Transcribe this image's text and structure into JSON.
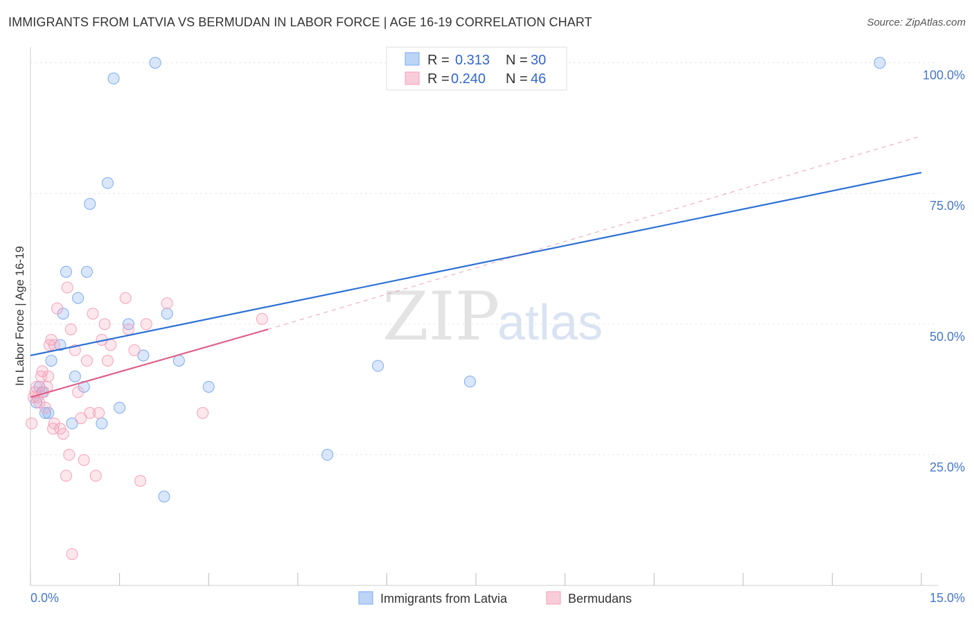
{
  "chart_data": {
    "type": "scatter",
    "title": "IMMIGRANTS FROM LATVIA VS BERMUDAN IN LABOR FORCE | AGE 16-19 CORRELATION CHART",
    "source": "Source: ZipAtlas.com",
    "xlabel": "",
    "ylabel": "In Labor Force | Age 16-19",
    "xlim": [
      0,
      15
    ],
    "ylim": [
      0,
      103
    ],
    "x_tick_labels": {
      "min": "0.0%",
      "max": "15.0%"
    },
    "y_ticks": [
      {
        "value": 25,
        "label": "25.0%"
      },
      {
        "value": 50,
        "label": "50.0%"
      },
      {
        "value": 75,
        "label": "75.0%"
      },
      {
        "value": 100,
        "label": "100.0%"
      }
    ],
    "watermark": {
      "zip": "ZIP",
      "atlas": "atlas"
    },
    "legend": [
      {
        "r_label": "R =",
        "r_value": "0.313",
        "n_label": "N =",
        "n_value": "30"
      },
      {
        "r_label": "R =",
        "r_value": "0.240",
        "n_label": "N =",
        "n_value": "46"
      }
    ],
    "series": [
      {
        "name": "Immigrants from Latvia",
        "color": "#7aaaf0",
        "line_color": "#2b6fd6",
        "trend": {
          "x": [
            0,
            15
          ],
          "y": [
            44,
            79
          ]
        },
        "points": [
          [
            0.1,
            35
          ],
          [
            0.15,
            38
          ],
          [
            0.2,
            37
          ],
          [
            0.25,
            33
          ],
          [
            0.3,
            33
          ],
          [
            0.35,
            43
          ],
          [
            0.5,
            46
          ],
          [
            0.55,
            52
          ],
          [
            0.6,
            60
          ],
          [
            0.7,
            31
          ],
          [
            0.75,
            40
          ],
          [
            0.8,
            55
          ],
          [
            0.9,
            38
          ],
          [
            0.95,
            60
          ],
          [
            1.0,
            73
          ],
          [
            1.2,
            31
          ],
          [
            1.3,
            77
          ],
          [
            1.4,
            97
          ],
          [
            1.5,
            34
          ],
          [
            1.65,
            50
          ],
          [
            1.9,
            44
          ],
          [
            2.1,
            100
          ],
          [
            2.25,
            17
          ],
          [
            2.3,
            52
          ],
          [
            2.5,
            43
          ],
          [
            3.0,
            38
          ],
          [
            5.0,
            25
          ],
          [
            5.85,
            42
          ],
          [
            7.4,
            39
          ],
          [
            14.3,
            100
          ]
        ]
      },
      {
        "name": "Bermudans",
        "color": "#f4a0b8",
        "line_color": "#e0608a",
        "trend": {
          "x": [
            0,
            4
          ],
          "y": [
            36,
            49
          ]
        },
        "trend_extension": {
          "x": [
            4,
            15
          ],
          "y": [
            49,
            86
          ]
        },
        "points": [
          [
            0.02,
            31
          ],
          [
            0.05,
            36
          ],
          [
            0.08,
            37
          ],
          [
            0.1,
            38
          ],
          [
            0.12,
            36
          ],
          [
            0.15,
            35
          ],
          [
            0.18,
            40
          ],
          [
            0.2,
            41
          ],
          [
            0.22,
            37
          ],
          [
            0.25,
            34
          ],
          [
            0.28,
            38
          ],
          [
            0.3,
            40
          ],
          [
            0.32,
            46
          ],
          [
            0.35,
            47
          ],
          [
            0.38,
            30
          ],
          [
            0.4,
            31
          ],
          [
            0.45,
            53
          ],
          [
            0.5,
            30
          ],
          [
            0.55,
            29
          ],
          [
            0.6,
            21
          ],
          [
            0.62,
            57
          ],
          [
            0.65,
            25
          ],
          [
            0.68,
            49
          ],
          [
            0.7,
            6
          ],
          [
            0.75,
            45
          ],
          [
            0.8,
            37
          ],
          [
            0.85,
            32
          ],
          [
            0.9,
            24
          ],
          [
            0.95,
            43
          ],
          [
            1.0,
            33
          ],
          [
            1.05,
            52
          ],
          [
            1.1,
            21
          ],
          [
            1.15,
            33
          ],
          [
            1.2,
            47
          ],
          [
            1.25,
            50
          ],
          [
            1.3,
            43
          ],
          [
            1.35,
            46
          ],
          [
            1.6,
            55
          ],
          [
            1.65,
            49
          ],
          [
            1.75,
            45
          ],
          [
            1.85,
            20
          ],
          [
            1.95,
            50
          ],
          [
            2.3,
            54
          ],
          [
            2.9,
            33
          ],
          [
            3.9,
            51
          ],
          [
            0.4,
            46
          ]
        ]
      }
    ]
  }
}
